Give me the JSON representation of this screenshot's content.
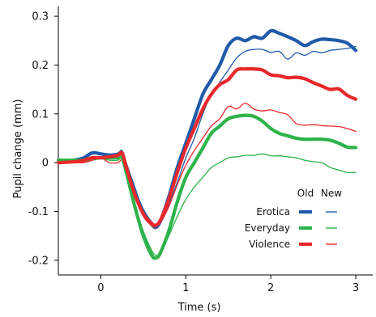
{
  "chart_data": {
    "type": "line",
    "xlabel": "Time (s)",
    "ylabel": "Pupil change (mm)",
    "xlim": [
      -0.5,
      3.2
    ],
    "ylim": [
      -0.23,
      0.32
    ],
    "x_ticks": [
      0,
      1,
      2,
      3
    ],
    "y_ticks": [
      -0.2,
      -0.1,
      0,
      0.1,
      0.2,
      0.3
    ],
    "y_tick_labels": [
      "-0.2",
      "-0.1",
      "0",
      "0.1",
      "0.2",
      "0.3"
    ],
    "grid": false,
    "legend": {
      "position": "lower-right",
      "column_headers": [
        "Old",
        "New"
      ],
      "style_note": "Old = thick line, New = thin line"
    },
    "series": [
      {
        "name": "Erotica",
        "condition": "Old",
        "color": "#1f5aa8",
        "x": [
          -0.5,
          -0.3,
          -0.2,
          -0.1,
          0,
          0.1,
          0.2,
          0.25,
          0.3,
          0.4,
          0.5,
          0.6,
          0.65,
          0.7,
          0.8,
          0.9,
          1.0,
          1.1,
          1.2,
          1.3,
          1.4,
          1.5,
          1.6,
          1.7,
          1.8,
          1.9,
          2.0,
          2.1,
          2.2,
          2.3,
          2.4,
          2.5,
          2.6,
          2.7,
          2.8,
          2.9,
          3.0
        ],
        "y": [
          0.0,
          0.005,
          0.01,
          0.02,
          0.018,
          0.015,
          0.015,
          0.02,
          -0.01,
          -0.06,
          -0.1,
          -0.125,
          -0.13,
          -0.12,
          -0.07,
          -0.01,
          0.04,
          0.09,
          0.14,
          0.17,
          0.2,
          0.24,
          0.255,
          0.25,
          0.258,
          0.255,
          0.27,
          0.265,
          0.258,
          0.25,
          0.24,
          0.248,
          0.253,
          0.252,
          0.25,
          0.245,
          0.23
        ]
      },
      {
        "name": "Erotica",
        "condition": "New",
        "color": "#1f5aa8",
        "x": [
          -0.5,
          -0.3,
          -0.2,
          -0.1,
          0,
          0.1,
          0.2,
          0.25,
          0.3,
          0.4,
          0.5,
          0.6,
          0.65,
          0.7,
          0.8,
          0.9,
          1.0,
          1.1,
          1.2,
          1.3,
          1.4,
          1.5,
          1.6,
          1.7,
          1.8,
          1.9,
          2.0,
          2.1,
          2.2,
          2.3,
          2.4,
          2.5,
          2.6,
          2.7,
          2.8,
          2.9,
          3.0
        ],
        "y": [
          0.005,
          0.008,
          0.012,
          0.02,
          0.02,
          0.018,
          0.02,
          0.025,
          0.0,
          -0.05,
          -0.1,
          -0.13,
          -0.135,
          -0.125,
          -0.085,
          -0.04,
          0.01,
          0.05,
          0.1,
          0.14,
          0.165,
          0.19,
          0.215,
          0.228,
          0.232,
          0.232,
          0.226,
          0.228,
          0.212,
          0.225,
          0.22,
          0.228,
          0.225,
          0.23,
          0.232,
          0.234,
          0.238
        ]
      },
      {
        "name": "Everyday",
        "condition": "Old",
        "color": "#2db34a",
        "x": [
          -0.5,
          -0.3,
          -0.2,
          -0.1,
          0,
          0.1,
          0.2,
          0.25,
          0.3,
          0.4,
          0.5,
          0.6,
          0.65,
          0.7,
          0.8,
          0.9,
          1.0,
          1.1,
          1.2,
          1.3,
          1.4,
          1.5,
          1.6,
          1.7,
          1.8,
          1.9,
          2.0,
          2.1,
          2.2,
          2.3,
          2.4,
          2.5,
          2.6,
          2.7,
          2.8,
          2.9,
          3.0
        ],
        "y": [
          0.005,
          0.005,
          0.005,
          0.01,
          0.01,
          0.01,
          0.01,
          0.01,
          -0.02,
          -0.09,
          -0.15,
          -0.19,
          -0.195,
          -0.185,
          -0.14,
          -0.08,
          -0.03,
          0.0,
          0.03,
          0.06,
          0.075,
          0.09,
          0.095,
          0.097,
          0.095,
          0.085,
          0.07,
          0.06,
          0.055,
          0.05,
          0.048,
          0.048,
          0.048,
          0.046,
          0.04,
          0.032,
          0.031
        ]
      },
      {
        "name": "Everyday",
        "condition": "New",
        "color": "#2db34a",
        "x": [
          -0.5,
          -0.3,
          -0.2,
          -0.1,
          0,
          0.1,
          0.2,
          0.25,
          0.3,
          0.4,
          0.5,
          0.6,
          0.65,
          0.7,
          0.8,
          0.9,
          1.0,
          1.1,
          1.2,
          1.3,
          1.4,
          1.5,
          1.6,
          1.7,
          1.8,
          1.9,
          2.0,
          2.1,
          2.2,
          2.3,
          2.4,
          2.5,
          2.6,
          2.7,
          2.8,
          2.9,
          3.0
        ],
        "y": [
          0.0,
          0.002,
          0.002,
          0.005,
          0.008,
          0.005,
          0.005,
          0.01,
          -0.02,
          -0.085,
          -0.14,
          -0.18,
          -0.19,
          -0.185,
          -0.15,
          -0.11,
          -0.075,
          -0.05,
          -0.03,
          -0.01,
          0.0,
          0.01,
          0.012,
          0.015,
          0.015,
          0.018,
          0.014,
          0.014,
          0.012,
          0.01,
          0.005,
          0.002,
          0.0,
          -0.01,
          -0.015,
          -0.02,
          -0.02
        ]
      },
      {
        "name": "Violence",
        "condition": "Old",
        "color": "#e8282b",
        "x": [
          -0.5,
          -0.3,
          -0.2,
          -0.1,
          0,
          0.1,
          0.2,
          0.25,
          0.3,
          0.4,
          0.5,
          0.6,
          0.65,
          0.7,
          0.8,
          0.9,
          1.0,
          1.1,
          1.2,
          1.3,
          1.4,
          1.5,
          1.6,
          1.7,
          1.8,
          1.9,
          2.0,
          2.1,
          2.2,
          2.3,
          2.4,
          2.5,
          2.6,
          2.7,
          2.8,
          2.9,
          3.0
        ],
        "y": [
          0.0,
          0.002,
          0.005,
          0.01,
          0.01,
          0.012,
          0.015,
          0.02,
          -0.01,
          -0.065,
          -0.105,
          -0.125,
          -0.128,
          -0.118,
          -0.075,
          -0.02,
          0.03,
          0.07,
          0.11,
          0.14,
          0.16,
          0.17,
          0.19,
          0.192,
          0.192,
          0.19,
          0.18,
          0.178,
          0.174,
          0.175,
          0.172,
          0.164,
          0.157,
          0.15,
          0.151,
          0.138,
          0.13
        ]
      },
      {
        "name": "Violence",
        "condition": "New",
        "color": "#e8282b",
        "x": [
          -0.5,
          -0.3,
          -0.2,
          -0.1,
          0,
          0.1,
          0.2,
          0.25,
          0.3,
          0.4,
          0.5,
          0.6,
          0.65,
          0.7,
          0.8,
          0.9,
          1.0,
          1.1,
          1.2,
          1.3,
          1.4,
          1.5,
          1.6,
          1.7,
          1.8,
          1.9,
          2.0,
          2.1,
          2.2,
          2.3,
          2.4,
          2.5,
          2.6,
          2.7,
          2.8,
          2.9,
          3.0
        ],
        "y": [
          0.0,
          0.0,
          0.0,
          0.005,
          0.01,
          0.0,
          0.0,
          0.005,
          -0.02,
          -0.07,
          -0.11,
          -0.13,
          -0.133,
          -0.125,
          -0.09,
          -0.045,
          -0.005,
          0.025,
          0.05,
          0.075,
          0.09,
          0.115,
          0.11,
          0.122,
          0.11,
          0.106,
          0.108,
          0.103,
          0.098,
          0.08,
          0.077,
          0.078,
          0.076,
          0.075,
          0.074,
          0.07,
          0.064
        ]
      }
    ]
  }
}
